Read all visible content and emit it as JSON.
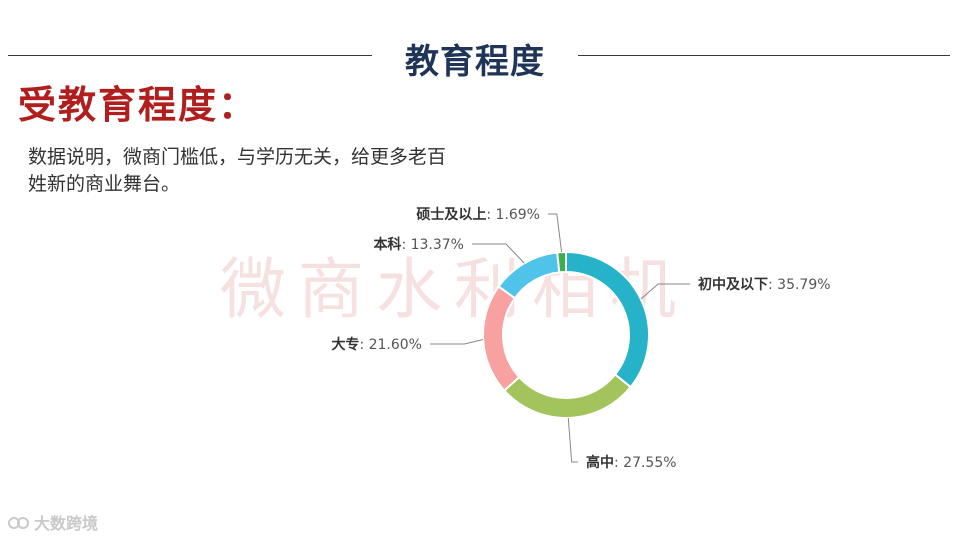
{
  "header": {
    "title": "教育程度"
  },
  "subtitle": "受教育程度：",
  "description": "数据说明，微商门槛低，与学历无关，给更多老百姓新的商业舞台。",
  "watermark": "微商水利相机",
  "footer": {
    "logo_text": "大数跨境"
  },
  "chart_data": {
    "type": "pie",
    "style": "donut",
    "categories": [
      "初中及以下",
      "高中",
      "大专",
      "本科",
      "硕士及以上"
    ],
    "values": [
      35.79,
      27.55,
      21.6,
      13.37,
      1.69
    ],
    "value_labels": [
      "35.79%",
      "27.55%",
      "21.60%",
      "13.37%",
      "1.69%"
    ],
    "colors": [
      "#26b3c9",
      "#a3c35d",
      "#f7a1a1",
      "#4fc3ea",
      "#3dae4d"
    ],
    "label_separator": ": ",
    "legend": "none"
  }
}
